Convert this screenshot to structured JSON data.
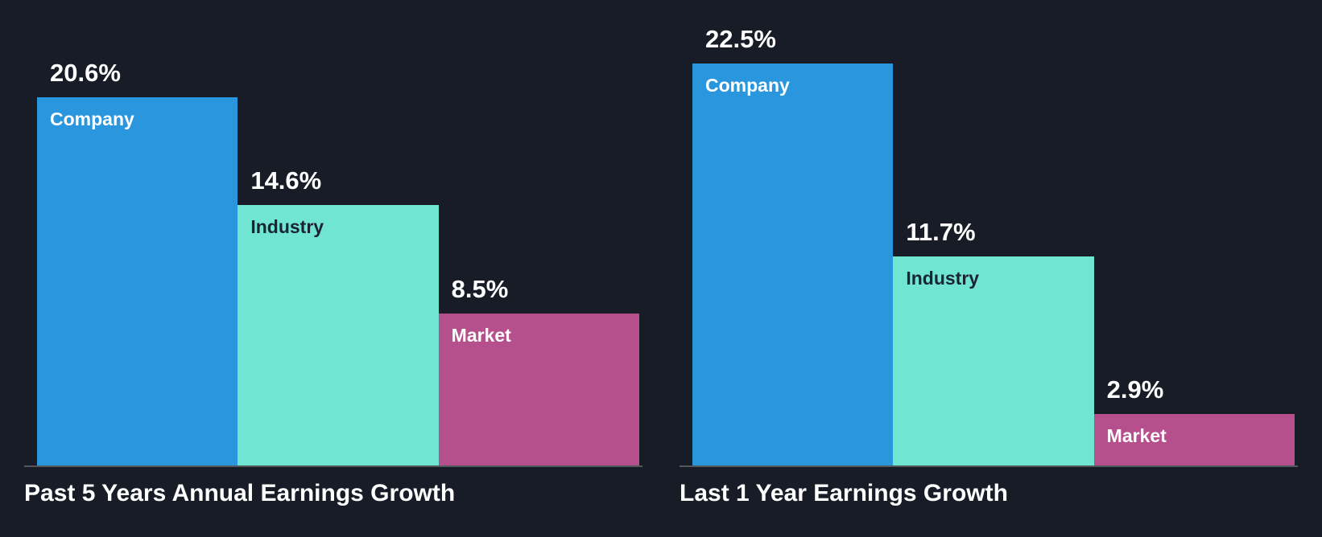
{
  "page": {
    "background": "#171c26",
    "baseline_color": "#53575e",
    "value_label_color": "#ffffff",
    "title_color": "#ffffff"
  },
  "chart_data": [
    {
      "type": "bar",
      "title": "Past 5 Years Annual Earnings Growth",
      "categories": [
        "Company",
        "Industry",
        "Market"
      ],
      "values": [
        20.6,
        14.6,
        8.5
      ],
      "value_labels": [
        "20.6%",
        "14.6%",
        "8.5%"
      ],
      "colors": [
        "#2a96de",
        "#70e6d2",
        "#b5508c"
      ],
      "category_label_colors": [
        "#ffffff",
        "#1b2430",
        "#ffffff"
      ],
      "ylim": [
        0,
        22.5
      ],
      "grid": false,
      "legend": "none"
    },
    {
      "type": "bar",
      "title": "Last 1 Year Earnings Growth",
      "categories": [
        "Company",
        "Industry",
        "Market"
      ],
      "values": [
        22.5,
        11.7,
        2.9
      ],
      "value_labels": [
        "22.5%",
        "11.7%",
        "2.9%"
      ],
      "colors": [
        "#2a96de",
        "#70e6d2",
        "#b5508c"
      ],
      "category_label_colors": [
        "#ffffff",
        "#1b2430",
        "#ffffff"
      ],
      "ylim": [
        0,
        22.5
      ],
      "grid": false,
      "legend": "none"
    }
  ]
}
